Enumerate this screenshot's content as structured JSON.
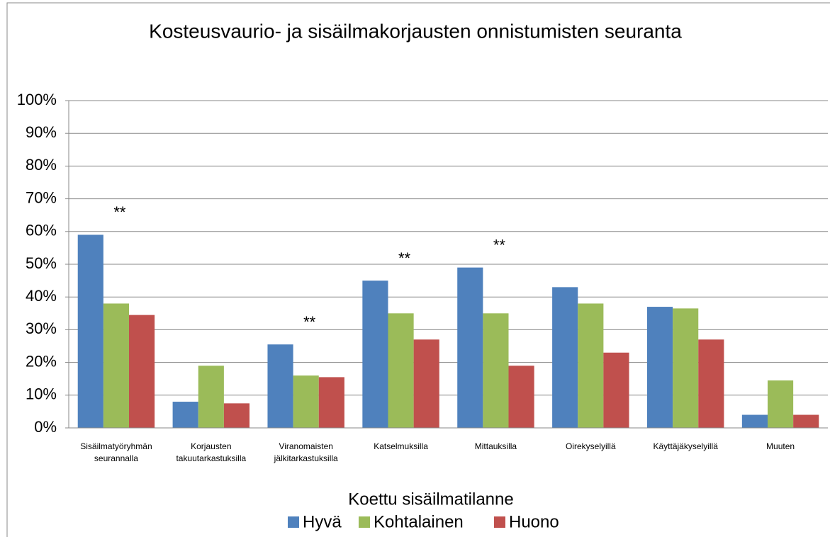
{
  "chart_data": {
    "type": "bar",
    "title": "Kosteusvaurio- ja sisäilmakorjausten onnistumisten seuranta",
    "categories": [
      "Sisäilmatyöryhmän\nseurannalla",
      "Korjausten\ntakuutarkastuksilla",
      "Viranomaisten\njälkitarkastuksilla",
      "Katselmuksilla",
      "Mittauksilla",
      "Oirekyselyillä",
      "Käyttäjäkyselyillä",
      "Muuten"
    ],
    "series": [
      {
        "name": "Hyvä",
        "color": "#4f81bd",
        "values": [
          59,
          8,
          25.5,
          45,
          49,
          43,
          37,
          4
        ]
      },
      {
        "name": "Kohtalainen",
        "color": "#9bbb59",
        "values": [
          38,
          19,
          16,
          35,
          35,
          38,
          36.5,
          14.5
        ]
      },
      {
        "name": "Huono",
        "color": "#c0504d",
        "values": [
          34.5,
          7.5,
          15.5,
          27,
          19,
          23,
          27,
          4
        ]
      }
    ],
    "annotations": [
      "**",
      null,
      "**",
      "**",
      "**",
      null,
      null,
      null
    ],
    "legend_title": "Koettu sisäilmatilanne",
    "legend": "bottom",
    "ylim": [
      0,
      100
    ],
    "yticks": [
      {
        "value": 0,
        "label": "0%"
      },
      {
        "value": 10,
        "label": "10%"
      },
      {
        "value": 20,
        "label": "20%"
      },
      {
        "value": 30,
        "label": "30%"
      },
      {
        "value": 40,
        "label": "40%"
      },
      {
        "value": 50,
        "label": "50%"
      },
      {
        "value": 60,
        "label": "60%"
      },
      {
        "value": 70,
        "label": "70%"
      },
      {
        "value": 80,
        "label": "80%"
      },
      {
        "value": 90,
        "label": "90%"
      },
      {
        "value": 100,
        "label": "100%"
      }
    ],
    "grid": true
  }
}
